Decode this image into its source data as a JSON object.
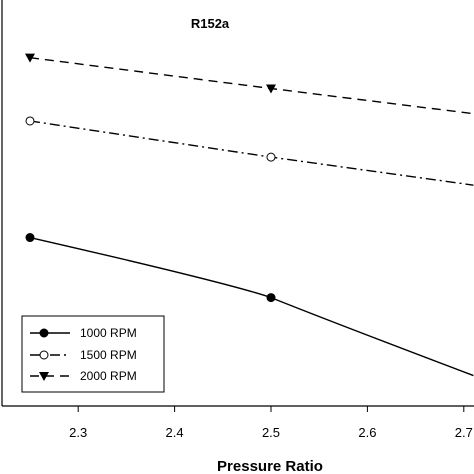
{
  "chart_data": {
    "type": "line",
    "title": "R152a",
    "xlabel": "Pressure Ratio",
    "ylabel": "",
    "xlim": [
      2.14,
      2.71
    ],
    "x_ticks": [
      "2.3",
      "2.4",
      "2.5",
      "2.6",
      "2.7"
    ],
    "grid": false,
    "legend_position": "bottom-left",
    "series": [
      {
        "name": "1000 RPM",
        "marker": "filled-circle",
        "line_style": "solid",
        "color": "#000000",
        "x": [
          2.25,
          2.5,
          2.71
        ],
        "y": [
          0.415,
          0.267,
          0.075
        ]
      },
      {
        "name": "1500 RPM",
        "marker": "open-circle",
        "line_style": "dash-dot",
        "color": "#000000",
        "x": [
          2.25,
          2.5,
          2.71
        ],
        "y": [
          0.702,
          0.613,
          0.544
        ]
      },
      {
        "name": "2000 RPM",
        "marker": "filled-triangle-down",
        "line_style": "dashed",
        "color": "#000000",
        "x": [
          2.25,
          2.5,
          2.71
        ],
        "y": [
          0.858,
          0.782,
          0.72
        ]
      }
    ]
  }
}
